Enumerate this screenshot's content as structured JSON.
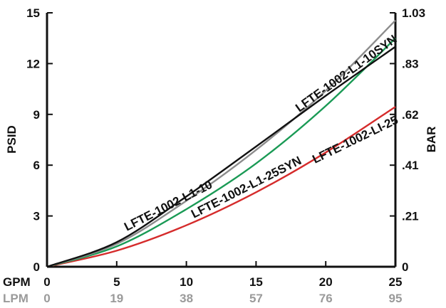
{
  "chart_data": {
    "type": "line",
    "x_primary": {
      "label": "GPM",
      "ticks": [
        "0",
        "5",
        "10",
        "15",
        "20",
        "25"
      ],
      "range": [
        0,
        25
      ]
    },
    "x_secondary": {
      "label": "LPM",
      "ticks": [
        "0",
        "19",
        "38",
        "57",
        "76",
        "95"
      ]
    },
    "y_left": {
      "label": "PSID",
      "ticks": [
        "0",
        "3",
        "6",
        "9",
        "12",
        "15"
      ],
      "range": [
        0,
        15
      ]
    },
    "y_right": {
      "label": "BAR",
      "ticks": [
        "0",
        ".21",
        ".41",
        ".62",
        ".83",
        "1.03"
      ]
    },
    "grid": false,
    "series": [
      {
        "name": "LFTE-1002-L1-10",
        "color": "#111111",
        "x": [
          0,
          5,
          10,
          15,
          20,
          25
        ],
        "y": [
          0,
          1.45,
          4.15,
          7.1,
          10.1,
          13.0
        ]
      },
      {
        "name": "LFTE-1002-L1-10SYN",
        "color": "#8c8c8c",
        "x": [
          0,
          5,
          10,
          15,
          20,
          25
        ],
        "y": [
          0,
          1.35,
          3.9,
          6.9,
          10.4,
          14.55
        ]
      },
      {
        "name": "LFTE-1002-L1-25SYN",
        "color": "#1a9a55",
        "x": [
          0,
          5,
          10,
          15,
          20,
          25
        ],
        "y": [
          0,
          1.2,
          3.4,
          6.1,
          9.5,
          13.5
        ]
      },
      {
        "name": "LFTE-1002-LI-25",
        "color": "#d52b2b",
        "x": [
          0,
          5,
          10,
          15,
          20,
          25
        ],
        "y": [
          0,
          0.95,
          2.45,
          4.4,
          6.75,
          9.45
        ]
      }
    ]
  }
}
